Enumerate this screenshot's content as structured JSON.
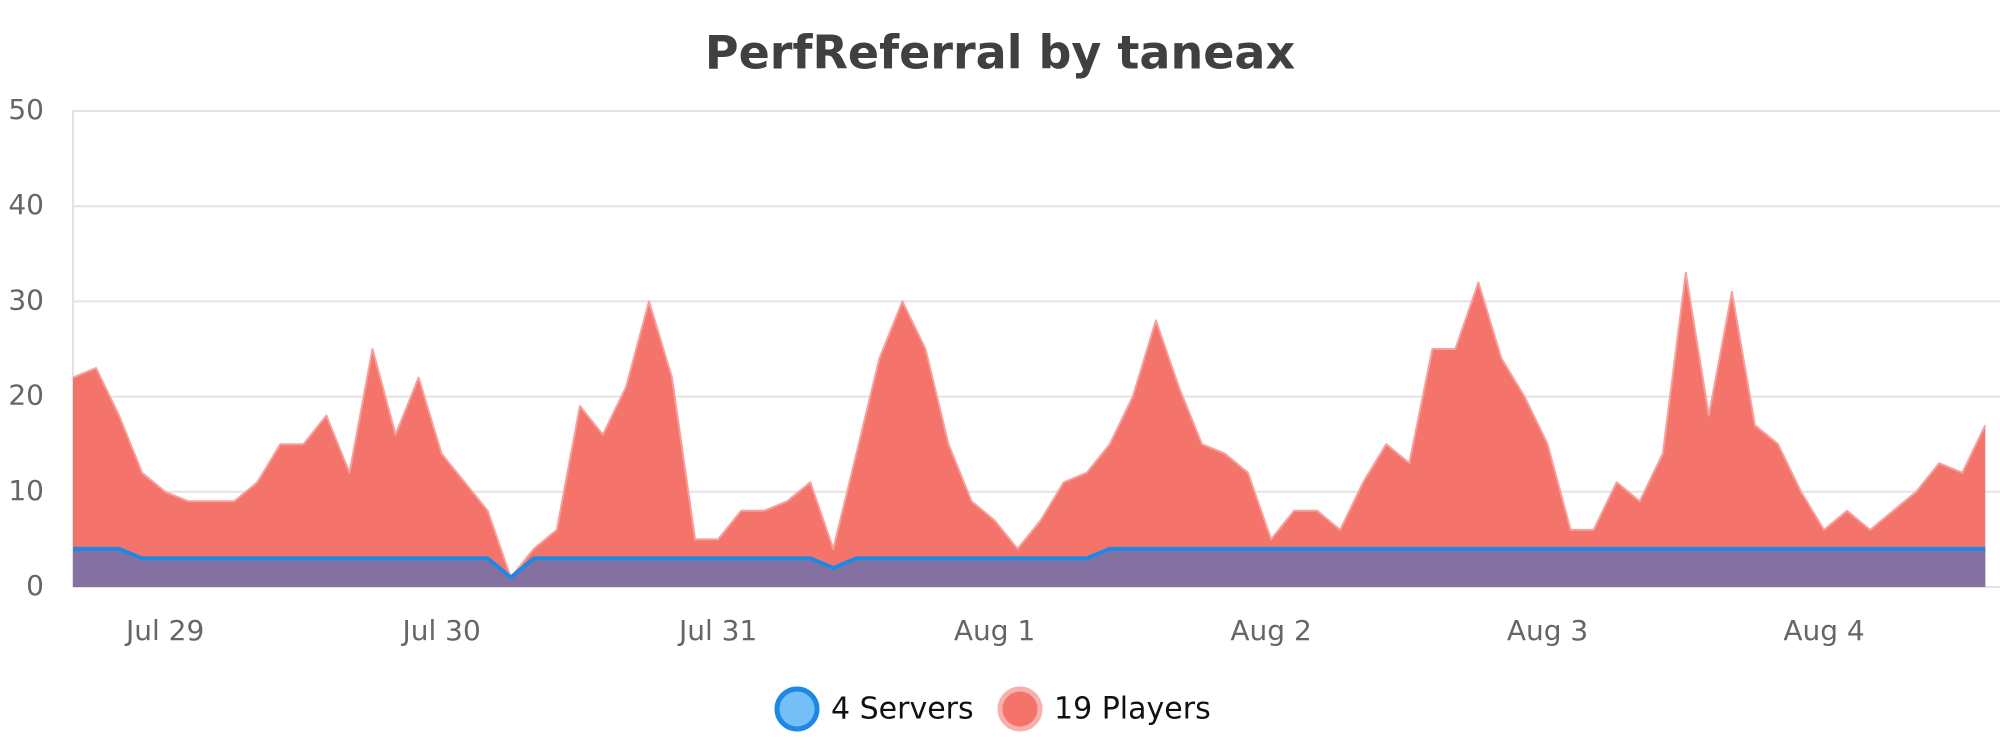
{
  "chart_data": {
    "type": "area",
    "title": "PerfReferral by taneax",
    "categories": [
      null,
      null,
      null,
      null,
      "Jul 29",
      null,
      null,
      null,
      null,
      null,
      null,
      null,
      null,
      null,
      null,
      null,
      "Jul 30",
      null,
      null,
      null,
      null,
      null,
      null,
      null,
      null,
      null,
      null,
      null,
      "Jul 31",
      null,
      null,
      null,
      null,
      null,
      null,
      null,
      null,
      null,
      null,
      null,
      "Aug 1",
      null,
      null,
      null,
      null,
      null,
      null,
      null,
      null,
      null,
      null,
      null,
      "Aug 2",
      null,
      null,
      null,
      null,
      null,
      null,
      null,
      null,
      null,
      null,
      null,
      "Aug 3",
      null,
      null,
      null,
      null,
      null,
      null,
      null,
      null,
      null,
      null,
      null,
      "Aug 4",
      null,
      null,
      null,
      null,
      null,
      null,
      null
    ],
    "series": [
      {
        "name": "4 Servers",
        "color": "#1e88e5",
        "values": [
          4,
          4,
          4,
          3,
          3,
          3,
          3,
          3,
          3,
          3,
          3,
          3,
          3,
          3,
          3,
          3,
          3,
          3,
          3,
          1,
          3,
          3,
          3,
          3,
          3,
          3,
          3,
          3,
          3,
          3,
          3,
          3,
          3,
          2,
          3,
          3,
          3,
          3,
          3,
          3,
          3,
          3,
          3,
          3,
          3,
          4,
          4,
          4,
          4,
          4,
          4,
          4,
          4,
          4,
          4,
          4,
          4,
          4,
          4,
          4,
          4,
          4,
          4,
          4,
          4,
          4,
          4,
          4,
          4,
          4,
          4,
          4,
          4,
          4,
          4,
          4,
          4,
          4,
          4,
          4,
          4,
          4,
          4,
          4
        ]
      },
      {
        "name": "19 Players",
        "color": "#f4736b",
        "values": [
          22,
          23,
          18,
          12,
          10,
          9,
          9,
          9,
          11,
          15,
          15,
          18,
          12,
          25,
          16,
          22,
          14,
          11,
          8,
          1,
          4,
          6,
          19,
          16,
          21,
          30,
          22,
          5,
          5,
          8,
          8,
          9,
          11,
          4,
          14,
          24,
          30,
          25,
          15,
          9,
          7,
          4,
          7,
          11,
          12,
          15,
          20,
          28,
          21,
          15,
          14,
          12,
          5,
          8,
          8,
          6,
          11,
          15,
          13,
          25,
          25,
          32,
          24,
          20,
          15,
          6,
          6,
          11,
          9,
          14,
          33,
          18,
          31,
          17,
          15,
          10,
          6,
          8,
          6,
          8,
          10,
          13,
          12,
          17
        ]
      }
    ],
    "ylim": [
      0,
      50
    ],
    "yticks": [
      0,
      10,
      20,
      30,
      40,
      50
    ],
    "grid": true
  }
}
